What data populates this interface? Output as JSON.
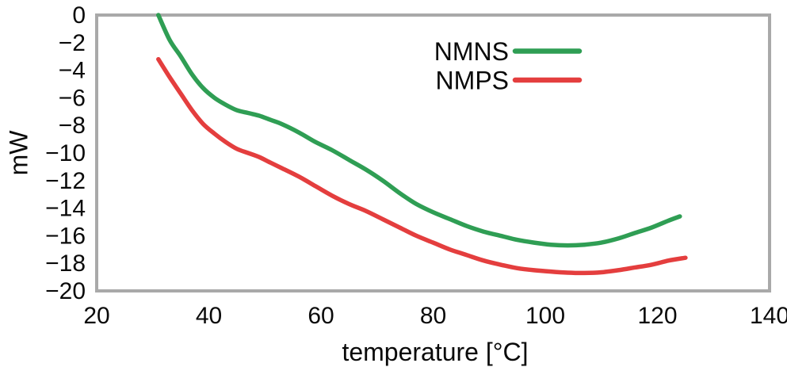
{
  "figure": {
    "background": "#ffffff",
    "frame_color": "#a9a9a9",
    "text_color": "#0a0a0a"
  },
  "chart_data": {
    "type": "line",
    "title": "",
    "xlabel": "temperature [°C]",
    "ylabel": "mW",
    "xlim": [
      20,
      140
    ],
    "ylim": [
      -20,
      0
    ],
    "x_ticks": [
      20,
      40,
      60,
      80,
      100,
      120,
      140
    ],
    "y_ticks": [
      0,
      -2,
      -4,
      -6,
      -8,
      -10,
      -12,
      -14,
      -16,
      -18,
      -20
    ],
    "grid": false,
    "legend_position": "top-right-inside",
    "series": [
      {
        "name": "NMNS",
        "color": "#2f9e54",
        "x": [
          31,
          33,
          35,
          37,
          39,
          41,
          43,
          45,
          47,
          49,
          51,
          53,
          56,
          59,
          62,
          65,
          68,
          71,
          74,
          77,
          80,
          83,
          86,
          89,
          92,
          95,
          98,
          101,
          104,
          107,
          110,
          113,
          116,
          119,
          122,
          124
        ],
        "y": [
          0,
          -1.8,
          -3.0,
          -4.3,
          -5.3,
          -6.0,
          -6.5,
          -6.9,
          -7.1,
          -7.3,
          -7.6,
          -7.9,
          -8.5,
          -9.2,
          -9.8,
          -10.5,
          -11.2,
          -12.0,
          -12.9,
          -13.7,
          -14.3,
          -14.8,
          -15.3,
          -15.7,
          -16.0,
          -16.3,
          -16.5,
          -16.65,
          -16.7,
          -16.65,
          -16.5,
          -16.2,
          -15.8,
          -15.4,
          -14.9,
          -14.6
        ]
      },
      {
        "name": "NMPS",
        "color": "#e43e3e",
        "x": [
          31,
          33,
          35,
          37,
          39,
          41,
          43,
          45,
          47,
          49,
          51,
          53,
          56,
          59,
          62,
          65,
          68,
          71,
          74,
          77,
          80,
          83,
          86,
          89,
          92,
          95,
          98,
          101,
          104,
          107,
          110,
          113,
          116,
          119,
          122,
          125
        ],
        "y": [
          -3.2,
          -4.5,
          -5.7,
          -6.9,
          -7.9,
          -8.6,
          -9.2,
          -9.7,
          -10.0,
          -10.3,
          -10.7,
          -11.1,
          -11.7,
          -12.4,
          -13.1,
          -13.7,
          -14.2,
          -14.8,
          -15.4,
          -16.0,
          -16.5,
          -17.0,
          -17.4,
          -17.8,
          -18.1,
          -18.35,
          -18.5,
          -18.6,
          -18.68,
          -18.7,
          -18.65,
          -18.5,
          -18.3,
          -18.1,
          -17.8,
          -17.6
        ]
      }
    ]
  }
}
